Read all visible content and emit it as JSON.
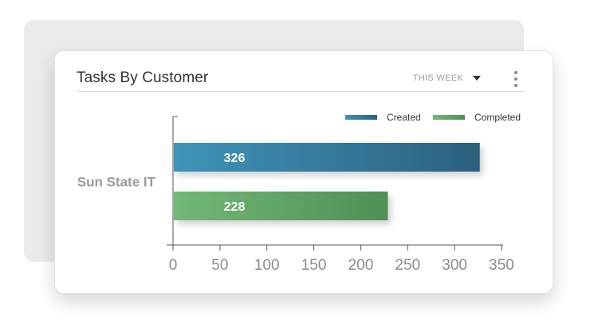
{
  "card": {
    "title": "Tasks By Customer",
    "period": "THIS WEEK",
    "menu_icon": "kebab-menu-icon",
    "dropdown_icon": "caret-down-icon"
  },
  "chart_data": {
    "type": "bar",
    "orientation": "horizontal",
    "categories": [
      "Sun State IT"
    ],
    "series": [
      {
        "name": "Created",
        "values": [
          326
        ],
        "color": "#2e6e8e"
      },
      {
        "name": "Completed",
        "values": [
          228
        ],
        "color": "#5fa565"
      }
    ],
    "xlim": [
      0,
      350
    ],
    "xticks": [
      0,
      50,
      100,
      150,
      200,
      250,
      300,
      350
    ],
    "grid": false,
    "legend": "top-right"
  }
}
